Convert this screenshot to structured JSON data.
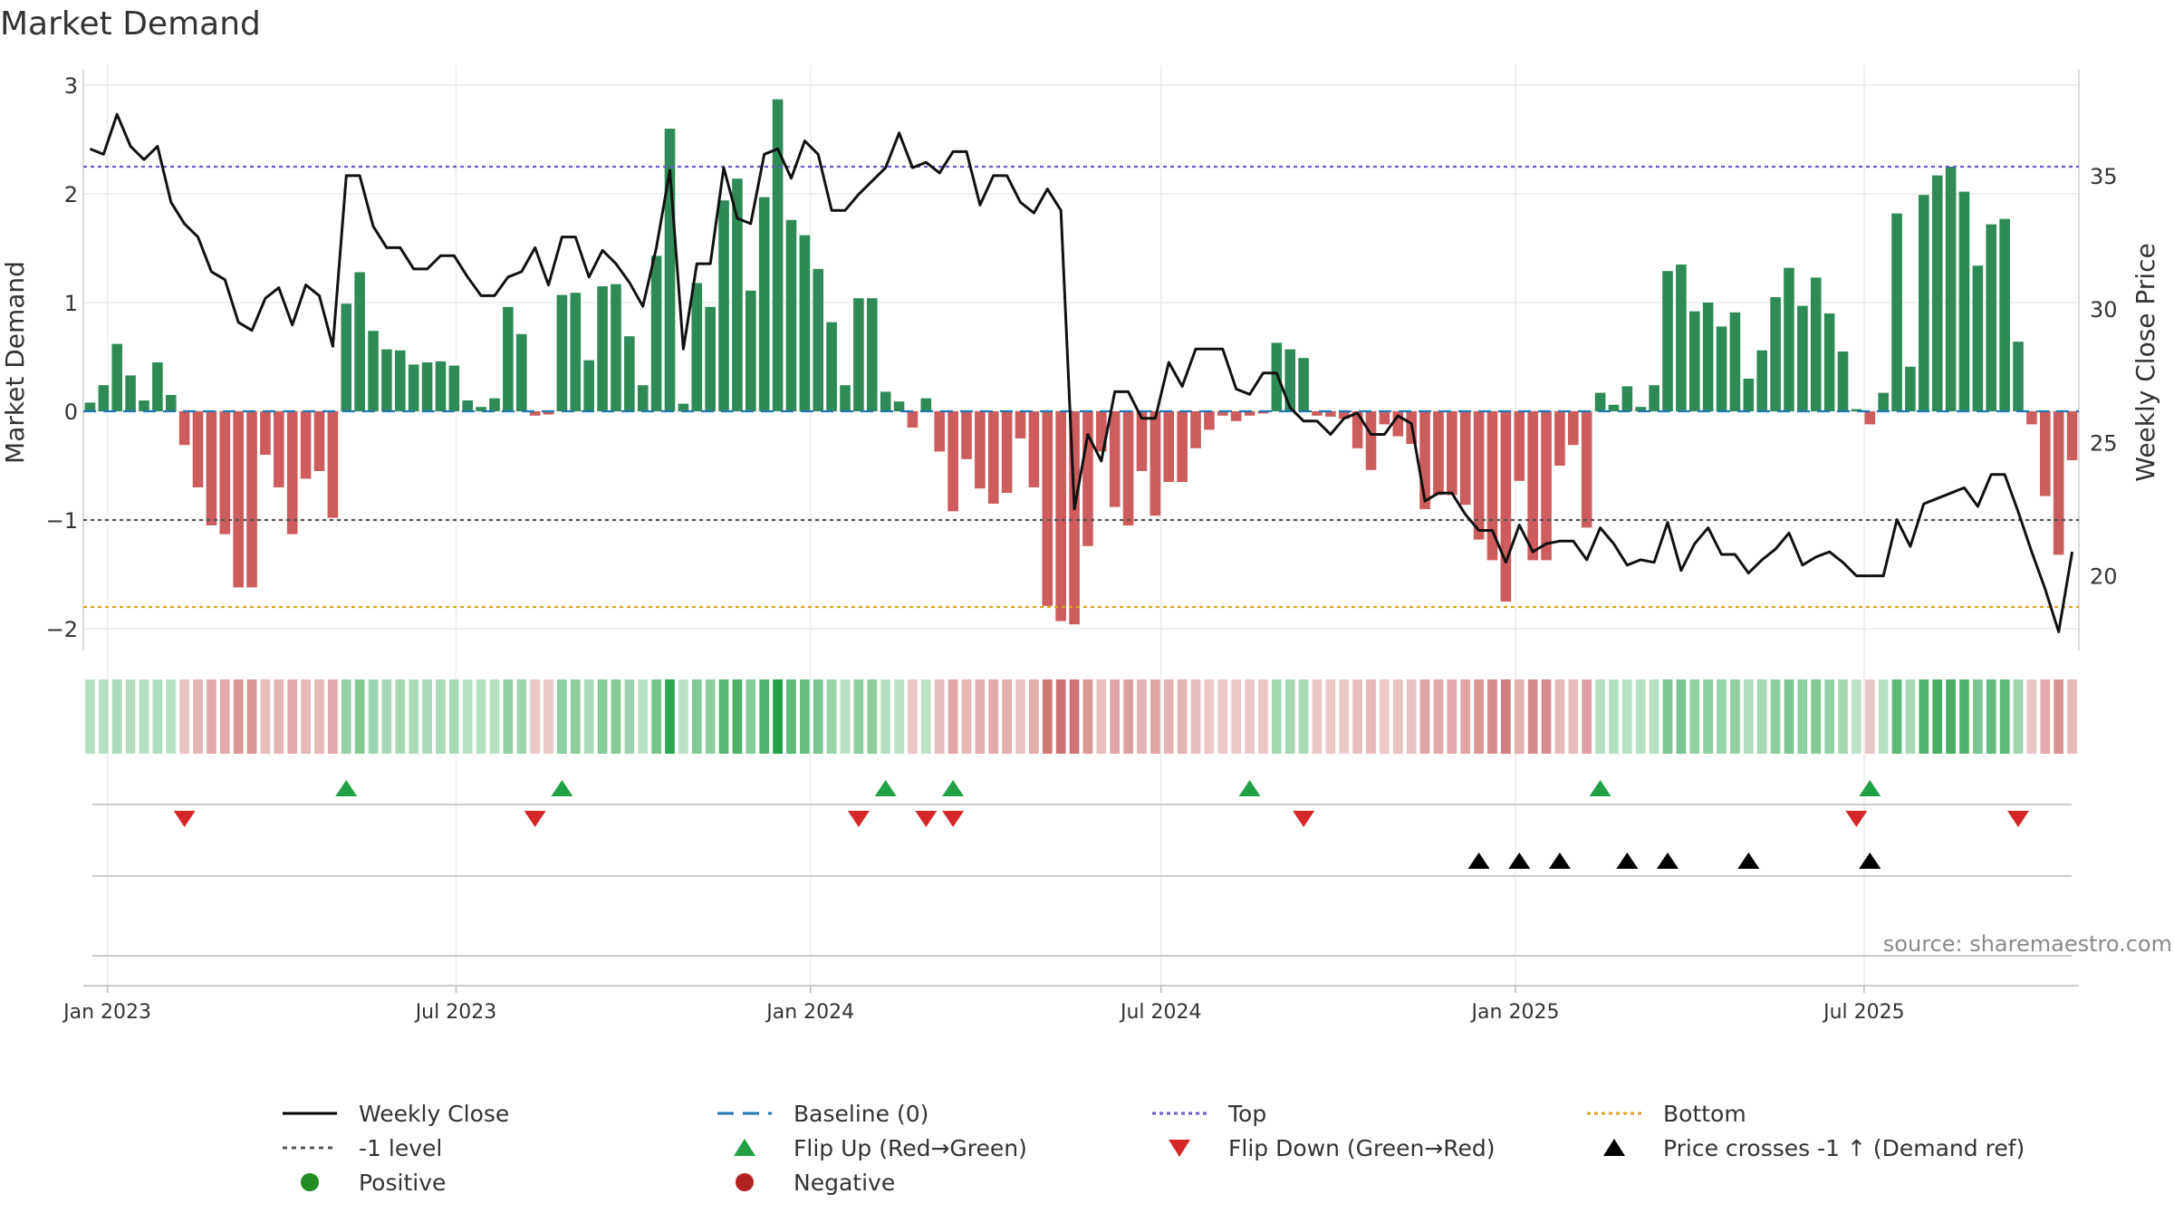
{
  "title": "Market Demand",
  "source": "source: sharemaestro.com",
  "colors": {
    "positive": "#2e8b57",
    "negative": "#cd5c5c",
    "price": "#111111",
    "top": "#6a5acd",
    "bottom": "#daa520",
    "baseline": "#1f77b4",
    "minus_one": "#555555",
    "flip_up": "#22a045",
    "flip_down": "#d62728",
    "cross": "#000000"
  },
  "chart_data": {
    "type": "bar",
    "subtype": "bar+line dual-axis with heat strip and event markers",
    "title": "Market Demand",
    "frequency": "weekly",
    "start_week": "2022-12-23",
    "end_week": "2025-09-26",
    "ylabel": "Market Demand",
    "ylabel_right": "Weekly Close Price",
    "ylim": [
      -2.2,
      3.1
    ],
    "ylim_right": [
      17.2,
      38.8
    ],
    "y_ticks": [
      3,
      2,
      1,
      0,
      -1,
      -2
    ],
    "y_tick_labels": [
      "3",
      "2",
      "1",
      "0",
      "−1",
      "−2"
    ],
    "y_right_ticks": [
      35,
      30,
      25,
      20
    ],
    "y_right_tick_labels": [
      "35",
      "30",
      "25",
      "20"
    ],
    "x_ticks": [
      {
        "label": "Jan 2023",
        "date": "2023-01-01"
      },
      {
        "label": "Jul 2023",
        "date": "2023-07-01"
      },
      {
        "label": "Jan 2024",
        "date": "2024-01-01"
      },
      {
        "label": "Jul 2024",
        "date": "2024-07-01"
      },
      {
        "label": "Jan 2025",
        "date": "2025-01-01"
      },
      {
        "label": "Jul 2025",
        "date": "2025-07-01"
      }
    ],
    "reference_lines": {
      "top": 2.25,
      "bottom": -1.8,
      "minus_one": -1,
      "baseline": 0
    },
    "demand": [
      0.08,
      0.24,
      0.62,
      0.33,
      0.1,
      0.45,
      0.15,
      -0.31,
      -0.7,
      -1.05,
      -1.13,
      -1.62,
      -1.62,
      -0.4,
      -0.7,
      -1.13,
      -0.62,
      -0.55,
      -0.98,
      0.99,
      1.28,
      0.74,
      0.57,
      0.56,
      0.43,
      0.45,
      0.46,
      0.42,
      0.1,
      0.04,
      0.12,
      0.96,
      0.71,
      -0.04,
      -0.03,
      1.07,
      1.09,
      0.47,
      1.15,
      1.17,
      0.69,
      0.24,
      1.43,
      2.6,
      0.07,
      1.18,
      0.96,
      1.94,
      2.14,
      1.11,
      1.97,
      2.87,
      1.76,
      1.62,
      1.31,
      0.82,
      0.24,
      1.04,
      1.04,
      0.18,
      0.09,
      -0.15,
      0.12,
      -0.37,
      -0.92,
      -0.44,
      -0.71,
      -0.85,
      -0.75,
      -0.25,
      -0.7,
      -1.79,
      -1.93,
      -1.96,
      -1.24,
      -0.37,
      -0.88,
      -1.05,
      -0.55,
      -0.96,
      -0.65,
      -0.65,
      -0.34,
      -0.17,
      -0.04,
      -0.09,
      -0.04,
      -0.02,
      0.63,
      0.57,
      0.49,
      -0.04,
      -0.05,
      -0.07,
      -0.34,
      -0.54,
      -0.12,
      -0.23,
      -0.3,
      -0.9,
      -0.77,
      -0.77,
      -0.86,
      -1.18,
      -1.37,
      -1.75,
      -0.64,
      -1.37,
      -1.37,
      -0.5,
      -0.31,
      -1.07,
      0.17,
      0.06,
      0.23,
      0.04,
      0.24,
      1.29,
      1.35,
      0.92,
      1.0,
      0.78,
      0.91,
      0.3,
      0.56,
      1.05,
      1.32,
      0.97,
      1.23,
      0.9,
      0.55,
      0.02,
      -0.12,
      0.17,
      1.82,
      0.41,
      1.99,
      2.17,
      2.25,
      2.02,
      1.34,
      1.72,
      1.77,
      0.64,
      -0.12,
      -0.78,
      -1.32,
      -0.45
    ],
    "price": [
      36.0,
      35.8,
      37.3,
      36.1,
      35.6,
      36.1,
      34.0,
      33.2,
      32.7,
      31.4,
      31.1,
      29.5,
      29.2,
      30.4,
      30.8,
      29.4,
      30.9,
      30.5,
      28.6,
      35.0,
      35.0,
      33.1,
      32.3,
      32.3,
      31.5,
      31.5,
      32.0,
      32.0,
      31.2,
      30.5,
      30.5,
      31.2,
      31.4,
      32.3,
      30.9,
      32.7,
      32.7,
      31.2,
      32.2,
      31.7,
      31.0,
      30.1,
      32.3,
      35.2,
      28.5,
      31.7,
      31.7,
      35.3,
      33.4,
      33.2,
      35.8,
      36.0,
      34.9,
      36.3,
      35.8,
      33.7,
      33.7,
      34.3,
      34.8,
      35.3,
      36.6,
      35.3,
      35.5,
      35.1,
      35.9,
      35.9,
      33.9,
      35.0,
      35.0,
      34.0,
      33.6,
      34.5,
      33.7,
      22.5,
      25.3,
      24.3,
      26.9,
      26.9,
      25.9,
      25.9,
      28.0,
      27.1,
      28.5,
      28.5,
      28.5,
      27.0,
      26.8,
      27.6,
      27.6,
      26.3,
      25.8,
      25.8,
      25.3,
      25.9,
      26.1,
      25.3,
      25.3,
      26.0,
      25.7,
      22.8,
      23.1,
      23.1,
      22.3,
      21.7,
      21.7,
      20.5,
      21.9,
      20.9,
      21.2,
      21.3,
      21.3,
      20.6,
      21.8,
      21.2,
      20.4,
      20.6,
      20.5,
      22.0,
      20.2,
      21.2,
      21.8,
      20.8,
      20.8,
      20.1,
      20.6,
      21.0,
      21.6,
      20.4,
      20.7,
      20.9,
      20.5,
      20.0,
      20.0,
      20.0,
      22.1,
      21.1,
      22.7,
      22.9,
      23.1,
      23.3,
      22.6,
      23.8,
      23.8,
      22.4,
      20.9,
      19.5,
      17.9,
      20.9
    ],
    "strip_color_values": [
      0.3,
      0.3,
      0.5,
      0.35,
      0.3,
      0.4,
      0.3,
      -0.3,
      -0.6,
      -0.8,
      -0.8,
      -1.2,
      -1.2,
      -0.4,
      -0.6,
      -0.8,
      -0.5,
      -0.5,
      -0.8,
      0.9,
      1.2,
      0.7,
      0.6,
      0.6,
      0.5,
      0.5,
      0.5,
      0.5,
      0.3,
      0.3,
      0.3,
      0.9,
      0.7,
      -0.2,
      -0.2,
      1.0,
      1.0,
      0.5,
      1.1,
      1.1,
      0.7,
      0.3,
      1.4,
      2.6,
      0.2,
      1.2,
      1.0,
      1.9,
      2.1,
      1.1,
      2.0,
      2.8,
      1.8,
      1.6,
      1.3,
      0.8,
      0.3,
      1.0,
      1.0,
      0.3,
      0.2,
      -0.2,
      0.2,
      -0.4,
      -0.9,
      -0.5,
      -0.7,
      -0.8,
      -0.7,
      -0.3,
      -0.7,
      -1.8,
      -1.9,
      -1.9,
      -1.2,
      -0.4,
      -0.9,
      -1.0,
      -0.6,
      -0.9,
      -0.6,
      -0.6,
      -0.4,
      -0.2,
      -0.2,
      -0.2,
      -0.2,
      -0.2,
      0.6,
      0.6,
      0.5,
      -0.2,
      -0.2,
      -0.2,
      -0.4,
      -0.5,
      -0.2,
      -0.3,
      -0.3,
      -0.9,
      -0.8,
      -0.8,
      -0.9,
      -1.2,
      -1.4,
      -1.7,
      -0.7,
      -1.4,
      -1.4,
      -0.5,
      -0.4,
      -1.0,
      0.3,
      0.3,
      0.3,
      0.3,
      0.3,
      1.3,
      1.3,
      0.9,
      1.0,
      0.8,
      0.9,
      0.4,
      0.6,
      1.0,
      1.3,
      1.0,
      1.2,
      0.9,
      0.6,
      0.2,
      -0.2,
      0.3,
      1.8,
      0.5,
      2.0,
      2.2,
      2.2,
      2.0,
      1.3,
      1.7,
      1.8,
      0.7,
      -0.2,
      -0.8,
      -1.3,
      -0.5
    ],
    "flip_up_weeks": [
      19,
      35,
      59,
      64,
      86,
      112,
      132
    ],
    "flip_down_weeks": [
      7,
      33,
      57,
      62,
      64,
      90,
      131,
      143
    ],
    "cross_weeks": [
      103,
      106,
      109,
      114,
      117,
      123,
      132
    ],
    "legend": [
      {
        "label": "Weekly Close",
        "marker": "line-solid",
        "color": "#000000"
      },
      {
        "label": "Baseline (0)",
        "marker": "line-dashed",
        "color": "#1f77b4"
      },
      {
        "label": "Top",
        "marker": "line-dotted",
        "color": "#6a5acd"
      },
      {
        "label": "Bottom",
        "marker": "line-dotted",
        "color": "#daa520"
      },
      {
        "label": "-1 level",
        "marker": "line-dotted",
        "color": "#555555"
      },
      {
        "label": "Flip Up (Red→Green)",
        "marker": "triangle-up",
        "color": "#22a045"
      },
      {
        "label": "Flip Down (Green→Red)",
        "marker": "triangle-down",
        "color": "#d62728"
      },
      {
        "label": "Price crosses -1 ↑ (Demand ref)",
        "marker": "triangle-up",
        "color": "#000000"
      },
      {
        "label": "Positive",
        "marker": "circle",
        "color": "#228b22"
      },
      {
        "label": "Negative",
        "marker": "circle",
        "color": "#b22222"
      }
    ],
    "legend_position": "bottom"
  }
}
